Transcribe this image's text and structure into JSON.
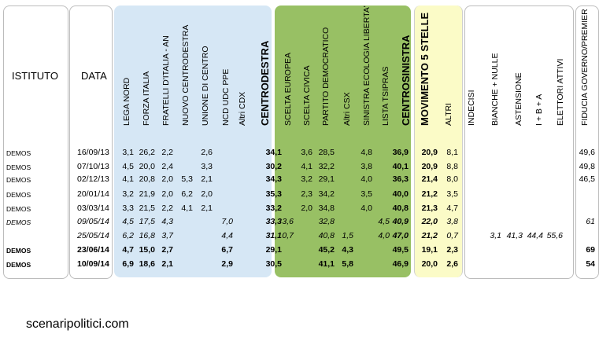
{
  "headers": {
    "istituto": "ISTITUTO",
    "data": "DATA",
    "cols": [
      "LEGA NORD",
      "FORZA ITALIA",
      "FRATELLI D'ITALIA - AN",
      "NUOVO CENTRODESTRA",
      "UNIONE DI CENTRO",
      "NCD UDC PPE",
      "Altri CDX",
      "CENTRODESTRA",
      "SCELTA EUROPEA",
      "SCELTA CIVICA",
      "PARTITO DEMOCRATICO",
      "Altri CSX",
      "SINISTRA ECOLOGIA LIBERTA'",
      "LISTA TSIPRAS",
      "CENTROSINISTRA",
      "MOVIMENTO 5 STELLE",
      "ALTRI",
      "INDECISI",
      "BIANCHE + NULLE",
      "ASTENSIONE",
      "I + B + A",
      "ELETTORI ATTIVI",
      "FIDUCIA GOVERNO/PREMIER"
    ]
  },
  "rows": [
    {
      "inst": "DEMOS",
      "date": "16/09/13",
      "c": [
        "3,1",
        "26,2",
        "2,2",
        "",
        "2,6",
        "",
        "",
        "34,1",
        "",
        "3,6",
        "28,5",
        "",
        "4,8",
        "",
        "36,9",
        "20,9",
        "8,1",
        "",
        "",
        "",
        "",
        "",
        "49,6"
      ]
    },
    {
      "inst": "DEMOS",
      "date": "07/10/13",
      "c": [
        "4,5",
        "20,0",
        "2,4",
        "",
        "3,3",
        "",
        "",
        "30,2",
        "",
        "4,1",
        "32,2",
        "",
        "3,8",
        "",
        "40,1",
        "20,9",
        "8,8",
        "",
        "",
        "",
        "",
        "",
        "49,8"
      ]
    },
    {
      "inst": "DEMOS",
      "date": "02/12/13",
      "c": [
        "4,1",
        "20,8",
        "2,0",
        "5,3",
        "2,1",
        "",
        "",
        "34,3",
        "",
        "3,2",
        "29,1",
        "",
        "4,0",
        "",
        "36,3",
        "21,4",
        "8,0",
        "",
        "",
        "",
        "",
        "",
        "46,5"
      ]
    },
    {
      "inst": "DEMOS",
      "date": "20/01/14",
      "c": [
        "3,2",
        "21,9",
        "2,0",
        "6,2",
        "2,0",
        "",
        "",
        "35,3",
        "",
        "2,3",
        "34,2",
        "",
        "3,5",
        "",
        "40,0",
        "21,2",
        "3,5",
        "",
        "",
        "",
        "",
        "",
        ""
      ]
    },
    {
      "inst": "DEMOS",
      "date": "03/03/14",
      "c": [
        "3,3",
        "21,5",
        "2,2",
        "4,1",
        "2,1",
        "",
        "",
        "33,2",
        "",
        "2,0",
        "34,8",
        "",
        "4,0",
        "",
        "40,8",
        "21,3",
        "4,7",
        "",
        "",
        "",
        "",
        "",
        ""
      ]
    },
    {
      "inst": "DEMOS",
      "date": "09/05/14",
      "c": [
        "4,5",
        "17,5",
        "4,3",
        "",
        "",
        "7,0",
        "",
        "33,3",
        "3,6",
        "",
        "32,8",
        "",
        "",
        "4,5",
        "40,9",
        "22,0",
        "3,8",
        "",
        "",
        "",
        "",
        "",
        "61"
      ]
    },
    {
      "inst": "",
      "date": "25/05/14",
      "c": [
        "6,2",
        "16,8",
        "3,7",
        "",
        "",
        "4,4",
        "",
        "31,1",
        "0,7",
        "",
        "40,8",
        "1,5",
        "",
        "4,0",
        "47,0",
        "21,2",
        "0,7",
        "",
        "3,1",
        "41,3",
        "44,4",
        "55,6",
        ""
      ]
    },
    {
      "inst": "DEMOS",
      "date": "23/06/14",
      "c": [
        "4,7",
        "15,0",
        "2,7",
        "",
        "",
        "6,7",
        "",
        "29,1",
        "",
        "",
        "45,2",
        "4,3",
        "",
        "",
        "49,5",
        "19,1",
        "2,3",
        "",
        "",
        "",
        "",
        "",
        "69"
      ]
    },
    {
      "inst": "DEMOS",
      "date": "10/09/14",
      "c": [
        "6,9",
        "18,6",
        "2,1",
        "",
        "",
        "2,9",
        "",
        "30,5",
        "",
        "",
        "41,1",
        "5,8",
        "",
        "",
        "46,9",
        "20,0",
        "2,6",
        "",
        "",
        "",
        "",
        "",
        "54"
      ]
    }
  ],
  "footer": "scenaripolitici.com",
  "colors": {
    "cdx": "#d6e7f5",
    "csx": "#98c064",
    "m5s": "#fbfbc7"
  }
}
